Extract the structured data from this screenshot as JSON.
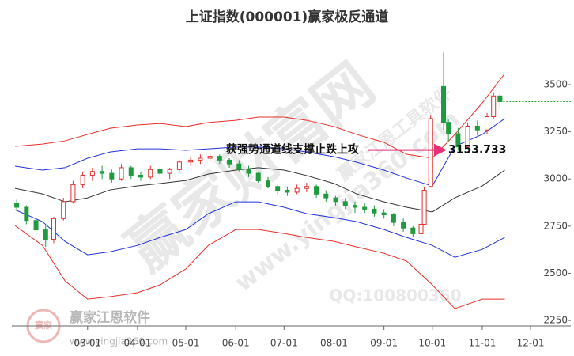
{
  "chart_data": {
    "type": "candlestick",
    "title": "上证指数(000001)赢家极反通道",
    "x": [
      "01-16",
      "01-22",
      "01-28",
      "02-03",
      "02-08",
      "02-14",
      "02-20",
      "02-26",
      "03-04",
      "03-10",
      "03-16",
      "03-22",
      "03-28",
      "04-03",
      "04-09",
      "04-15",
      "04-21",
      "04-27",
      "05-04",
      "05-10",
      "05-16",
      "05-22",
      "05-28",
      "06-03",
      "06-09",
      "06-15",
      "06-21",
      "06-27",
      "07-03",
      "07-09",
      "07-15",
      "07-21",
      "07-27",
      "08-02",
      "08-08",
      "08-14",
      "08-20",
      "08-26",
      "09-01",
      "09-07",
      "09-13",
      "09-19",
      "09-24",
      "09-26",
      "09-30",
      "10-08",
      "10-11",
      "10-17",
      "10-23",
      "10-29",
      "11-04",
      "11-08",
      "11-12"
    ],
    "open": [
      2870,
      2850,
      2780,
      2730,
      2680,
      2790,
      2880,
      2970,
      3020,
      3040,
      3030,
      3000,
      3060,
      3020,
      3010,
      3050,
      3030,
      3050,
      3090,
      3100,
      3110,
      3120,
      3100,
      3080,
      3050,
      3030,
      2990,
      2960,
      2940,
      2930,
      2950,
      2960,
      2920,
      2900,
      2880,
      2860,
      2850,
      2840,
      2820,
      2810,
      2770,
      2740,
      2710,
      2760,
      2960,
      3490,
      3300,
      3240,
      3170,
      3280,
      3260,
      3330,
      3440
    ],
    "high": [
      2890,
      2860,
      2800,
      2760,
      2800,
      2900,
      2990,
      3040,
      3060,
      3070,
      3050,
      3080,
      3070,
      3040,
      3070,
      3080,
      3060,
      3100,
      3120,
      3130,
      3140,
      3130,
      3110,
      3100,
      3070,
      3040,
      3010,
      2970,
      2960,
      2970,
      2980,
      2970,
      2940,
      2910,
      2900,
      2880,
      2870,
      2860,
      2840,
      2820,
      2790,
      2750,
      2780,
      2960,
      3340,
      3670,
      3320,
      3270,
      3300,
      3310,
      3350,
      3460,
      3460
    ],
    "low": [
      2830,
      2760,
      2700,
      2640,
      2660,
      2780,
      2870,
      2950,
      2990,
      3000,
      2980,
      2990,
      3000,
      2990,
      3000,
      3020,
      3000,
      3040,
      3070,
      3080,
      3090,
      3080,
      3060,
      3040,
      3010,
      2980,
      2950,
      2920,
      2910,
      2920,
      2930,
      2900,
      2880,
      2860,
      2840,
      2820,
      2820,
      2800,
      2790,
      2750,
      2720,
      2690,
      2700,
      2760,
      2960,
      3260,
      3200,
      3150,
      3160,
      3230,
      3240,
      3320,
      3380
    ],
    "close": [
      2850,
      2780,
      2730,
      2680,
      2790,
      2880,
      2970,
      3020,
      3040,
      3030,
      3000,
      3060,
      3020,
      3010,
      3050,
      3030,
      3050,
      3090,
      3100,
      3110,
      3120,
      3100,
      3080,
      3050,
      3030,
      2990,
      2960,
      2940,
      2930,
      2950,
      2960,
      2920,
      2900,
      2880,
      2860,
      2850,
      2840,
      2820,
      2810,
      2770,
      2740,
      2710,
      2760,
      2940,
      3320,
      3300,
      3240,
      3170,
      3280,
      3260,
      3330,
      3440,
      3410
    ],
    "up_color": "#e0302f",
    "down_color": "#1e9b3e",
    "bands": {
      "x": [
        "01-15",
        "02-01",
        "02-15",
        "03-01",
        "03-15",
        "04-01",
        "04-15",
        "05-01",
        "05-15",
        "06-01",
        "06-15",
        "07-01",
        "07-15",
        "08-01",
        "08-15",
        "09-01",
        "09-15",
        "10-01",
        "10-15",
        "11-01",
        "11-15"
      ],
      "series": [
        {
          "color": "#e8302a",
          "values": [
            3173,
            3185,
            3202,
            3236,
            3269,
            3286,
            3294,
            3278,
            3299,
            3311,
            3328,
            3328,
            3311,
            3278,
            3236,
            3194,
            3131,
            3110,
            3236,
            3403,
            3559
          ]
        },
        {
          "color": "#2233dd",
          "values": [
            3068,
            3047,
            3060,
            3110,
            3143,
            3160,
            3160,
            3152,
            3160,
            3169,
            3169,
            3160,
            3143,
            3118,
            3089,
            3047,
            3005,
            2963,
            3173,
            3236,
            3320
          ]
        },
        {
          "color": "#333333",
          "values": [
            2950,
            2921,
            2879,
            2900,
            2942,
            2963,
            2976,
            2992,
            3026,
            3047,
            3060,
            3047,
            3018,
            2976,
            2921,
            2879,
            2850,
            2825,
            2900,
            2963,
            3047
          ]
        },
        {
          "color": "#2233dd",
          "values": [
            2837,
            2774,
            2669,
            2598,
            2614,
            2648,
            2690,
            2732,
            2816,
            2879,
            2879,
            2850,
            2816,
            2795,
            2774,
            2732,
            2690,
            2648,
            2585,
            2627,
            2690
          ]
        },
        {
          "color": "#e8302a",
          "values": [
            2753,
            2648,
            2460,
            2363,
            2376,
            2397,
            2439,
            2523,
            2648,
            2732,
            2732,
            2711,
            2690,
            2669,
            2640,
            2606,
            2565,
            2439,
            2313,
            2363,
            2363
          ]
        }
      ]
    },
    "xlim": [
      "01-13",
      "12-26"
    ],
    "xticks": [
      "03-01",
      "04-01",
      "05-01",
      "06-01",
      "07-01",
      "08-01",
      "09-01",
      "10-01",
      "11-01",
      "12-01"
    ],
    "ylim": [
      2221,
      3760
    ],
    "yticks": [
      2250,
      2500,
      2750,
      3000,
      3250,
      3500
    ],
    "annotation": {
      "text": "获强势通道线支撑止跌上攻",
      "value": 3153.733,
      "color": "#e8307a"
    },
    "last_line_color": "#2ca02c",
    "watermarks": [
      "赢家财富网",
      "www.yingjia360.com",
      "赢家江恩工具软件",
      "QQ:100800360"
    ],
    "logo": {
      "badge": "赢家",
      "name": "赢家江恩软件",
      "url": "www.yingjia360.com"
    }
  }
}
